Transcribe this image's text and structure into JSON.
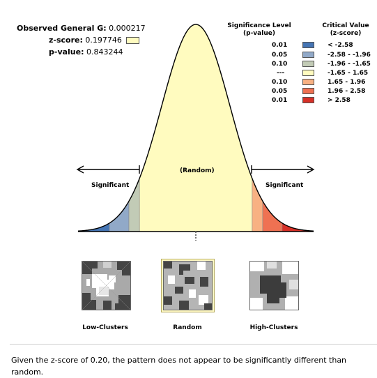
{
  "stats": {
    "observed_label": "Observed General G:",
    "observed_value": "0.000217",
    "z_label": "z-score:",
    "z_value": "0.197746",
    "p_label": "p-value:",
    "p_value": "0.843244"
  },
  "legend": {
    "sig_header_1": "Significance Level",
    "sig_header_2": "(p-value)",
    "crit_header_1": "Critical Value",
    "crit_header_2": "(z-score)",
    "rows": [
      {
        "p": "0.01",
        "z": "< -2.58",
        "color": "#4575b4"
      },
      {
        "p": "0.05",
        "z": "-2.58 - -1.96",
        "color": "#91a9c8"
      },
      {
        "p": "0.10",
        "z": "-1.96 - -1.65",
        "color": "#c2cbb6"
      },
      {
        "p": "---",
        "z": "-1.65 - 1.65",
        "color": "#fffbbf"
      },
      {
        "p": "0.10",
        "z": "1.65 - 1.96",
        "color": "#f8b183"
      },
      {
        "p": "0.05",
        "z": "1.96 - 2.58",
        "color": "#ef7152"
      },
      {
        "p": "0.01",
        "z": "> 2.58",
        "color": "#d73027"
      }
    ]
  },
  "curve": {
    "left_label": "Significant",
    "right_label": "Significant",
    "center_label": "(Random)"
  },
  "maps": {
    "low": "Low-Clusters",
    "random": "Random",
    "high": "High-Clusters"
  },
  "message": "Given the z-score of 0.20, the pattern does not appear to be significantly different than random."
}
